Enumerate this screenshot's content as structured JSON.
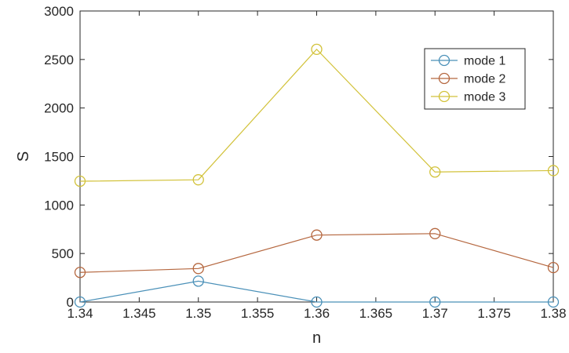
{
  "chart_data": {
    "type": "line",
    "title": "",
    "xlabel": "n",
    "ylabel": "S",
    "x": [
      1.34,
      1.35,
      1.36,
      1.37,
      1.38
    ],
    "xlim": [
      1.34,
      1.38
    ],
    "ylim": [
      0,
      3000
    ],
    "xticks": [
      1.34,
      1.345,
      1.35,
      1.355,
      1.36,
      1.365,
      1.37,
      1.375,
      1.38
    ],
    "xtick_labels": [
      "1.34",
      "1.345",
      "1.35",
      "1.355",
      "1.36",
      "1.365",
      "1.37",
      "1.375",
      "1.38"
    ],
    "yticks": [
      0,
      500,
      1000,
      1500,
      2000,
      2500,
      3000
    ],
    "ytick_labels": [
      "0",
      "500",
      "1000",
      "1500",
      "2000",
      "2500",
      "3000"
    ],
    "grid": false,
    "legend_position": "top-right",
    "marker": "circle",
    "series": [
      {
        "name": "mode 1",
        "color": "#4a90b8",
        "values": [
          0,
          215,
          0,
          0,
          0
        ]
      },
      {
        "name": "mode 2",
        "color": "#b5673f",
        "values": [
          305,
          345,
          690,
          705,
          355
        ]
      },
      {
        "name": "mode 3",
        "color": "#d2c23a",
        "values": [
          1245,
          1260,
          2605,
          1340,
          1355
        ]
      }
    ]
  }
}
